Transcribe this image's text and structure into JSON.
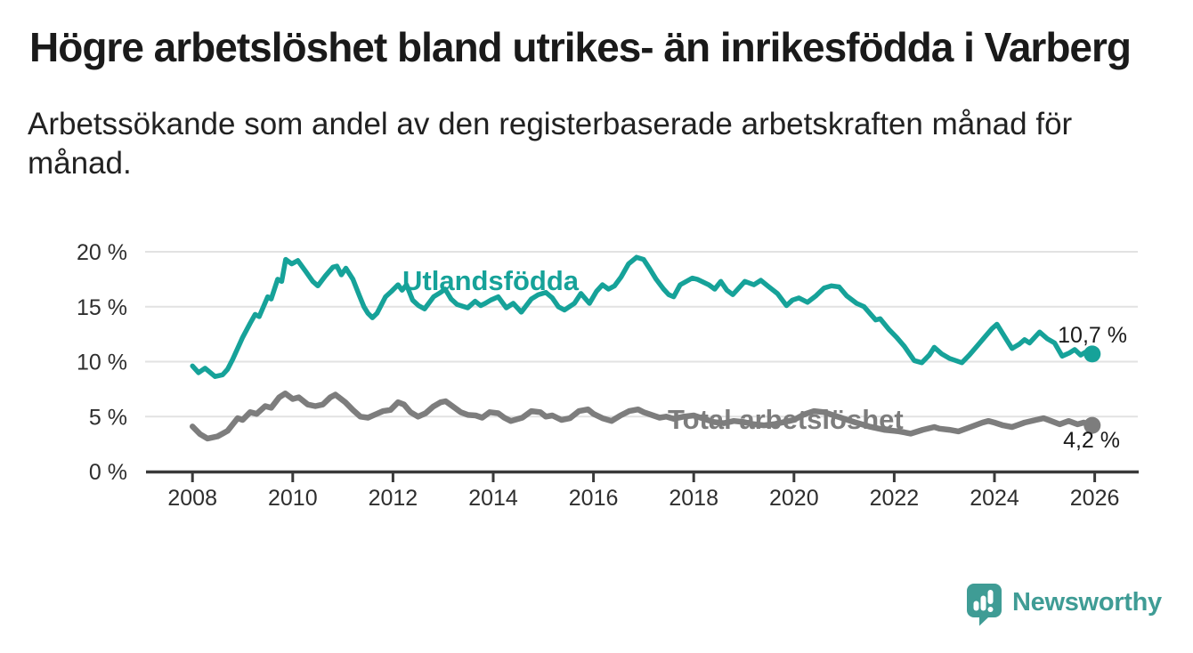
{
  "header": {
    "title": "Högre arbetslöshet bland utrikes- än inrikesfödda i Varberg",
    "subtitle_lines": [
      "Arbetssökande som andel av den registerbaserade arbetskraften månad för",
      "månad."
    ]
  },
  "chart_data": {
    "type": "line",
    "title": "Högre arbetslöshet bland utrikes- än inrikesfödda i Varberg",
    "subtitle": "Arbetssökande som andel av den registerbaserade arbetskraften månad för månad.",
    "unit": "%",
    "grid": "horizontal",
    "xlabel": "",
    "ylabel": "",
    "x_domain": [
      2007.09,
      2026.86
    ],
    "y_domain": [
      0,
      20
    ],
    "x_tick_labels": [
      "2008",
      "2010",
      "2012",
      "2014",
      "2016",
      "2018",
      "2020",
      "2022",
      "2024",
      "2026"
    ],
    "y_tick_labels": [
      "0 %",
      "5 %",
      "10 %",
      "15 %",
      "20 %"
    ],
    "series": [
      {
        "name": "Utlandsfödda",
        "color": "#16A299",
        "end_label": "10,7 %",
        "last_value": 10.7,
        "points": [
          [
            2008.0,
            9.6
          ],
          [
            2008.12,
            9.0
          ],
          [
            2008.25,
            9.4
          ],
          [
            2008.45,
            8.65
          ],
          [
            2008.6,
            8.8
          ],
          [
            2008.7,
            9.3
          ],
          [
            2008.8,
            10.2
          ],
          [
            2009.0,
            12.2
          ],
          [
            2009.15,
            13.5
          ],
          [
            2009.25,
            14.3
          ],
          [
            2009.33,
            14.1
          ],
          [
            2009.5,
            15.9
          ],
          [
            2009.57,
            15.7
          ],
          [
            2009.7,
            17.5
          ],
          [
            2009.78,
            17.3
          ],
          [
            2009.86,
            19.3
          ],
          [
            2009.98,
            18.9
          ],
          [
            2010.1,
            19.2
          ],
          [
            2010.26,
            18.2
          ],
          [
            2010.4,
            17.3
          ],
          [
            2010.5,
            16.9
          ],
          [
            2010.65,
            17.8
          ],
          [
            2010.8,
            18.6
          ],
          [
            2010.88,
            18.7
          ],
          [
            2010.97,
            17.9
          ],
          [
            2011.06,
            18.5
          ],
          [
            2011.2,
            17.5
          ],
          [
            2011.33,
            16.0
          ],
          [
            2011.42,
            15.0
          ],
          [
            2011.5,
            14.4
          ],
          [
            2011.59,
            14.0
          ],
          [
            2011.68,
            14.4
          ],
          [
            2011.85,
            15.9
          ],
          [
            2011.97,
            16.4
          ],
          [
            2012.1,
            17.0
          ],
          [
            2012.18,
            16.5
          ],
          [
            2012.27,
            17.0
          ],
          [
            2012.39,
            15.6
          ],
          [
            2012.51,
            15.1
          ],
          [
            2012.63,
            14.8
          ],
          [
            2012.81,
            15.9
          ],
          [
            2012.95,
            16.3
          ],
          [
            2013.04,
            16.6
          ],
          [
            2013.16,
            15.7
          ],
          [
            2013.28,
            15.2
          ],
          [
            2013.49,
            14.9
          ],
          [
            2013.64,
            15.5
          ],
          [
            2013.75,
            15.1
          ],
          [
            2013.84,
            15.3
          ],
          [
            2013.95,
            15.6
          ],
          [
            2014.1,
            15.9
          ],
          [
            2014.26,
            14.9
          ],
          [
            2014.4,
            15.3
          ],
          [
            2014.56,
            14.5
          ],
          [
            2014.76,
            15.7
          ],
          [
            2014.9,
            16.1
          ],
          [
            2015.05,
            16.3
          ],
          [
            2015.18,
            15.8
          ],
          [
            2015.3,
            15.0
          ],
          [
            2015.42,
            14.7
          ],
          [
            2015.62,
            15.3
          ],
          [
            2015.75,
            16.2
          ],
          [
            2015.92,
            15.3
          ],
          [
            2016.06,
            16.4
          ],
          [
            2016.18,
            17.0
          ],
          [
            2016.3,
            16.6
          ],
          [
            2016.42,
            16.9
          ],
          [
            2016.55,
            17.7
          ],
          [
            2016.7,
            18.9
          ],
          [
            2016.86,
            19.5
          ],
          [
            2017.0,
            19.3
          ],
          [
            2017.13,
            18.4
          ],
          [
            2017.25,
            17.5
          ],
          [
            2017.4,
            16.6
          ],
          [
            2017.5,
            16.1
          ],
          [
            2017.6,
            15.9
          ],
          [
            2017.73,
            17.0
          ],
          [
            2017.97,
            17.6
          ],
          [
            2018.07,
            17.5
          ],
          [
            2018.3,
            17.0
          ],
          [
            2018.42,
            16.6
          ],
          [
            2018.54,
            17.3
          ],
          [
            2018.66,
            16.5
          ],
          [
            2018.78,
            16.1
          ],
          [
            2019.02,
            17.3
          ],
          [
            2019.2,
            17.0
          ],
          [
            2019.34,
            17.4
          ],
          [
            2019.5,
            16.8
          ],
          [
            2019.67,
            16.2
          ],
          [
            2019.85,
            15.1
          ],
          [
            2019.97,
            15.6
          ],
          [
            2020.1,
            15.8
          ],
          [
            2020.27,
            15.4
          ],
          [
            2020.44,
            16.0
          ],
          [
            2020.6,
            16.7
          ],
          [
            2020.75,
            16.9
          ],
          [
            2020.9,
            16.8
          ],
          [
            2021.05,
            16.0
          ],
          [
            2021.25,
            15.3
          ],
          [
            2021.4,
            15.0
          ],
          [
            2021.55,
            14.2
          ],
          [
            2021.63,
            13.8
          ],
          [
            2021.72,
            13.9
          ],
          [
            2021.9,
            12.9
          ],
          [
            2022.05,
            12.2
          ],
          [
            2022.2,
            11.4
          ],
          [
            2022.4,
            10.1
          ],
          [
            2022.55,
            9.9
          ],
          [
            2022.7,
            10.6
          ],
          [
            2022.8,
            11.3
          ],
          [
            2022.95,
            10.7
          ],
          [
            2023.1,
            10.3
          ],
          [
            2023.35,
            9.9
          ],
          [
            2023.5,
            10.6
          ],
          [
            2023.65,
            11.4
          ],
          [
            2023.8,
            12.2
          ],
          [
            2023.95,
            13.0
          ],
          [
            2024.05,
            13.4
          ],
          [
            2024.2,
            12.3
          ],
          [
            2024.35,
            11.2
          ],
          [
            2024.5,
            11.6
          ],
          [
            2024.6,
            12.0
          ],
          [
            2024.7,
            11.7
          ],
          [
            2024.9,
            12.7
          ],
          [
            2025.05,
            12.1
          ],
          [
            2025.2,
            11.7
          ],
          [
            2025.35,
            10.5
          ],
          [
            2025.5,
            10.8
          ],
          [
            2025.6,
            11.1
          ],
          [
            2025.72,
            10.6
          ],
          [
            2025.83,
            10.9
          ],
          [
            2025.95,
            10.7
          ]
        ]
      },
      {
        "name": "Total arbetslöshet",
        "color": "#7D7D7D",
        "end_label": "4,2 %",
        "last_value": 4.2,
        "points": [
          [
            2008.0,
            4.1
          ],
          [
            2008.15,
            3.4
          ],
          [
            2008.3,
            3.0
          ],
          [
            2008.5,
            3.2
          ],
          [
            2008.7,
            3.7
          ],
          [
            2008.9,
            4.85
          ],
          [
            2009.0,
            4.7
          ],
          [
            2009.15,
            5.4
          ],
          [
            2009.28,
            5.25
          ],
          [
            2009.45,
            5.95
          ],
          [
            2009.57,
            5.8
          ],
          [
            2009.73,
            6.75
          ],
          [
            2009.85,
            7.1
          ],
          [
            2010.0,
            6.6
          ],
          [
            2010.12,
            6.75
          ],
          [
            2010.3,
            6.1
          ],
          [
            2010.45,
            5.95
          ],
          [
            2010.6,
            6.1
          ],
          [
            2010.75,
            6.75
          ],
          [
            2010.85,
            7.0
          ],
          [
            2011.05,
            6.3
          ],
          [
            2011.2,
            5.6
          ],
          [
            2011.35,
            5.0
          ],
          [
            2011.5,
            4.9
          ],
          [
            2011.65,
            5.2
          ],
          [
            2011.8,
            5.5
          ],
          [
            2011.95,
            5.6
          ],
          [
            2012.1,
            6.3
          ],
          [
            2012.22,
            6.1
          ],
          [
            2012.35,
            5.4
          ],
          [
            2012.5,
            5.0
          ],
          [
            2012.65,
            5.3
          ],
          [
            2012.8,
            5.9
          ],
          [
            2012.95,
            6.3
          ],
          [
            2013.05,
            6.4
          ],
          [
            2013.2,
            5.9
          ],
          [
            2013.35,
            5.4
          ],
          [
            2013.5,
            5.15
          ],
          [
            2013.65,
            5.1
          ],
          [
            2013.78,
            4.9
          ],
          [
            2013.93,
            5.4
          ],
          [
            2014.1,
            5.3
          ],
          [
            2014.22,
            4.9
          ],
          [
            2014.35,
            4.6
          ],
          [
            2014.58,
            4.9
          ],
          [
            2014.76,
            5.5
          ],
          [
            2014.94,
            5.4
          ],
          [
            2015.05,
            5.0
          ],
          [
            2015.18,
            5.1
          ],
          [
            2015.36,
            4.7
          ],
          [
            2015.53,
            4.85
          ],
          [
            2015.71,
            5.5
          ],
          [
            2015.89,
            5.65
          ],
          [
            2016.0,
            5.25
          ],
          [
            2016.18,
            4.85
          ],
          [
            2016.36,
            4.6
          ],
          [
            2016.54,
            5.1
          ],
          [
            2016.71,
            5.5
          ],
          [
            2016.89,
            5.65
          ],
          [
            2017.0,
            5.4
          ],
          [
            2017.19,
            5.1
          ],
          [
            2017.32,
            4.9
          ],
          [
            2017.45,
            5.0
          ],
          [
            2017.6,
            4.8
          ],
          [
            2017.8,
            5.0
          ],
          [
            2018.0,
            5.1
          ],
          [
            2018.2,
            4.8
          ],
          [
            2018.4,
            4.5
          ],
          [
            2018.6,
            4.4
          ],
          [
            2018.8,
            4.6
          ],
          [
            2019.0,
            4.5
          ],
          [
            2019.2,
            4.3
          ],
          [
            2019.4,
            4.2
          ],
          [
            2019.6,
            4.3
          ],
          [
            2019.8,
            4.5
          ],
          [
            2020.0,
            4.7
          ],
          [
            2020.2,
            5.2
          ],
          [
            2020.4,
            5.5
          ],
          [
            2020.6,
            5.4
          ],
          [
            2020.8,
            5.1
          ],
          [
            2021.0,
            4.8
          ],
          [
            2021.2,
            4.5
          ],
          [
            2021.5,
            4.1
          ],
          [
            2021.8,
            3.8
          ],
          [
            2022.0,
            3.7
          ],
          [
            2022.1,
            3.65
          ],
          [
            2022.33,
            3.45
          ],
          [
            2022.57,
            3.8
          ],
          [
            2022.8,
            4.05
          ],
          [
            2022.9,
            3.9
          ],
          [
            2023.1,
            3.8
          ],
          [
            2023.28,
            3.65
          ],
          [
            2023.52,
            4.05
          ],
          [
            2023.76,
            4.45
          ],
          [
            2023.88,
            4.6
          ],
          [
            2024.0,
            4.45
          ],
          [
            2024.17,
            4.2
          ],
          [
            2024.35,
            4.05
          ],
          [
            2024.6,
            4.45
          ],
          [
            2024.83,
            4.7
          ],
          [
            2024.98,
            4.85
          ],
          [
            2025.13,
            4.6
          ],
          [
            2025.3,
            4.3
          ],
          [
            2025.48,
            4.6
          ],
          [
            2025.66,
            4.3
          ],
          [
            2025.78,
            4.45
          ],
          [
            2025.95,
            4.2
          ]
        ]
      }
    ]
  },
  "footer": {
    "brand": "Newsworthy",
    "logo_color": "#3F9C95"
  }
}
